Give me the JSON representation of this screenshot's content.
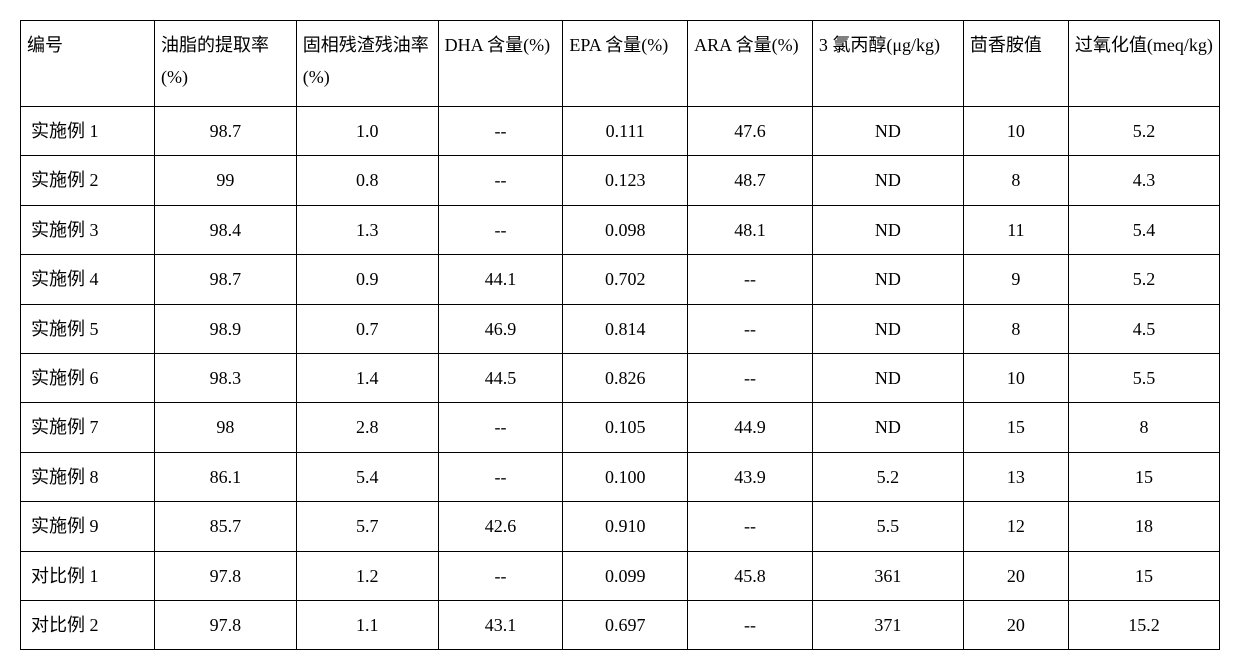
{
  "table": {
    "type": "table",
    "background_color": "#ffffff",
    "border_color": "#000000",
    "border_width": 1.5,
    "font_family": "SimSun",
    "header_fontsize": 18,
    "cell_fontsize": 18,
    "text_color": "#000000",
    "header_align": "left",
    "body_align": "center",
    "first_col_body_align": "left",
    "column_widths_pct": [
      10.2,
      10.8,
      10.8,
      9.5,
      9.5,
      9.5,
      11.5,
      8.0,
      11.5
    ],
    "columns": [
      "编号",
      "油脂的提取率(%)",
      "固相残渣残油率(%)",
      "DHA 含量(%)",
      "EPA 含量(%)",
      "ARA 含量(%)",
      "3 氯丙醇(μg/kg)",
      "茴香胺值",
      "过氧化值(meq/kg)"
    ],
    "rows": [
      [
        "实施例 1",
        "98.7",
        "1.0",
        "--",
        "0.111",
        "47.6",
        "ND",
        "10",
        "5.2"
      ],
      [
        "实施例 2",
        "99",
        "0.8",
        "--",
        "0.123",
        "48.7",
        "ND",
        "8",
        "4.3"
      ],
      [
        "实施例 3",
        "98.4",
        "1.3",
        "--",
        "0.098",
        "48.1",
        "ND",
        "11",
        "5.4"
      ],
      [
        "实施例 4",
        "98.7",
        "0.9",
        "44.1",
        "0.702",
        "--",
        "ND",
        "9",
        "5.2"
      ],
      [
        "实施例 5",
        "98.9",
        "0.7",
        "46.9",
        "0.814",
        "--",
        "ND",
        "8",
        "4.5"
      ],
      [
        "实施例 6",
        "98.3",
        "1.4",
        "44.5",
        "0.826",
        "--",
        "ND",
        "10",
        "5.5"
      ],
      [
        "实施例 7",
        "98",
        "2.8",
        "--",
        "0.105",
        "44.9",
        "ND",
        "15",
        "8"
      ],
      [
        "实施例 8",
        "86.1",
        "5.4",
        "--",
        "0.100",
        "43.9",
        "5.2",
        "13",
        "15"
      ],
      [
        "实施例 9",
        "85.7",
        "5.7",
        "42.6",
        "0.910",
        "--",
        "5.5",
        "12",
        "18"
      ],
      [
        "对比例 1",
        "97.8",
        "1.2",
        "--",
        "0.099",
        "45.8",
        "361",
        "20",
        "15"
      ],
      [
        "对比例 2",
        "97.8",
        "1.1",
        "43.1",
        "0.697",
        "--",
        "371",
        "20",
        "15.2"
      ]
    ]
  }
}
